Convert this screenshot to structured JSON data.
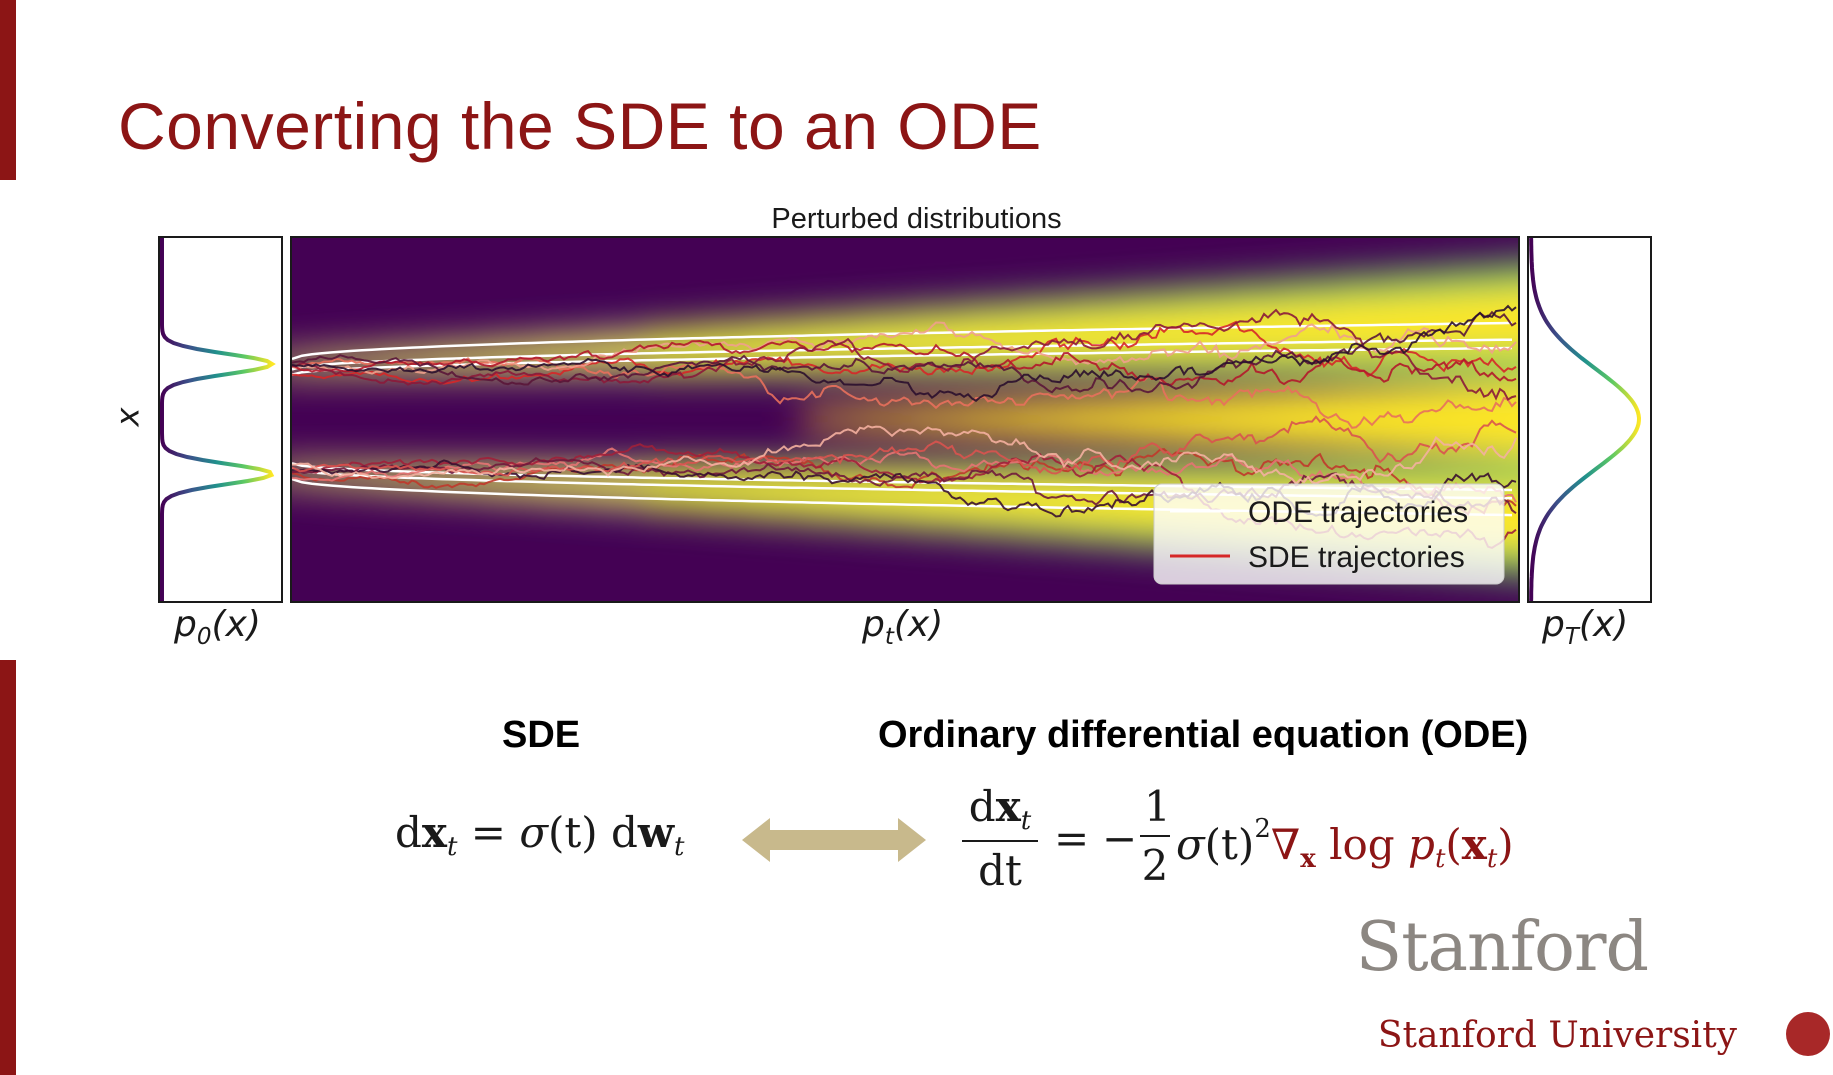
{
  "slide": {
    "title": "Converting the SDE to an ODE"
  },
  "figure": {
    "title": "Perturbed distributions",
    "y_axis_label": "x",
    "panels": {
      "p0": {
        "label": "p",
        "subscript": "0",
        "arg": "(x)"
      },
      "pt": {
        "label": "p",
        "subscript": "t",
        "arg": "(x)"
      },
      "pT": {
        "label": "p",
        "subscript": "T",
        "arg": "(x)"
      }
    },
    "legend": {
      "ode": "ODE trajectories",
      "sde": "SDE trajectories"
    },
    "colors": {
      "ode_line": "#ffffff",
      "sde_line": "#d62728",
      "density_low": "#440154",
      "density_high": "#fde725"
    }
  },
  "chart_data": {
    "type": "line",
    "title": "Perturbed distributions",
    "ylabel": "x",
    "xlabels": [
      "p0(x)",
      "pt(x)",
      "pT(x)"
    ],
    "legend": [
      "ODE trajectories",
      "SDE trajectories"
    ],
    "initial_modes": [
      -1,
      1
    ],
    "series": [
      {
        "name": "ODE trajectories",
        "start_values": [
          1.15,
          0.95,
          0.85,
          -0.85,
          -0.95,
          -1.15
        ],
        "spread_factor": 1.6
      },
      {
        "name": "SDE trajectories",
        "count": 14
      }
    ]
  },
  "equations": {
    "sde_heading": "SDE",
    "ode_heading": "Ordinary differential equation (ODE)",
    "sde": {
      "d": "d",
      "x": "x",
      "t": "t",
      "eq": "=",
      "sigma": "σ",
      "of_t": "(t)",
      "w": "w"
    },
    "ode": {
      "frac_num_d": "d",
      "frac_num_x": "x",
      "frac_num_t": "t",
      "frac_den": "dt",
      "eq": "=",
      "minus": "−",
      "half_num": "1",
      "half_den": "2",
      "sigma": "σ",
      "of_t": "(t)",
      "sq": "2",
      "nabla": "∇",
      "nabla_sub": "x",
      "log": "log",
      "p": "p",
      "p_sub": "t",
      "arg_open": "(",
      "arg_x": "x",
      "arg_sub": "t",
      "arg_close": ")"
    }
  },
  "branding": {
    "wordmark": "Stanford",
    "university": "Stanford University"
  }
}
